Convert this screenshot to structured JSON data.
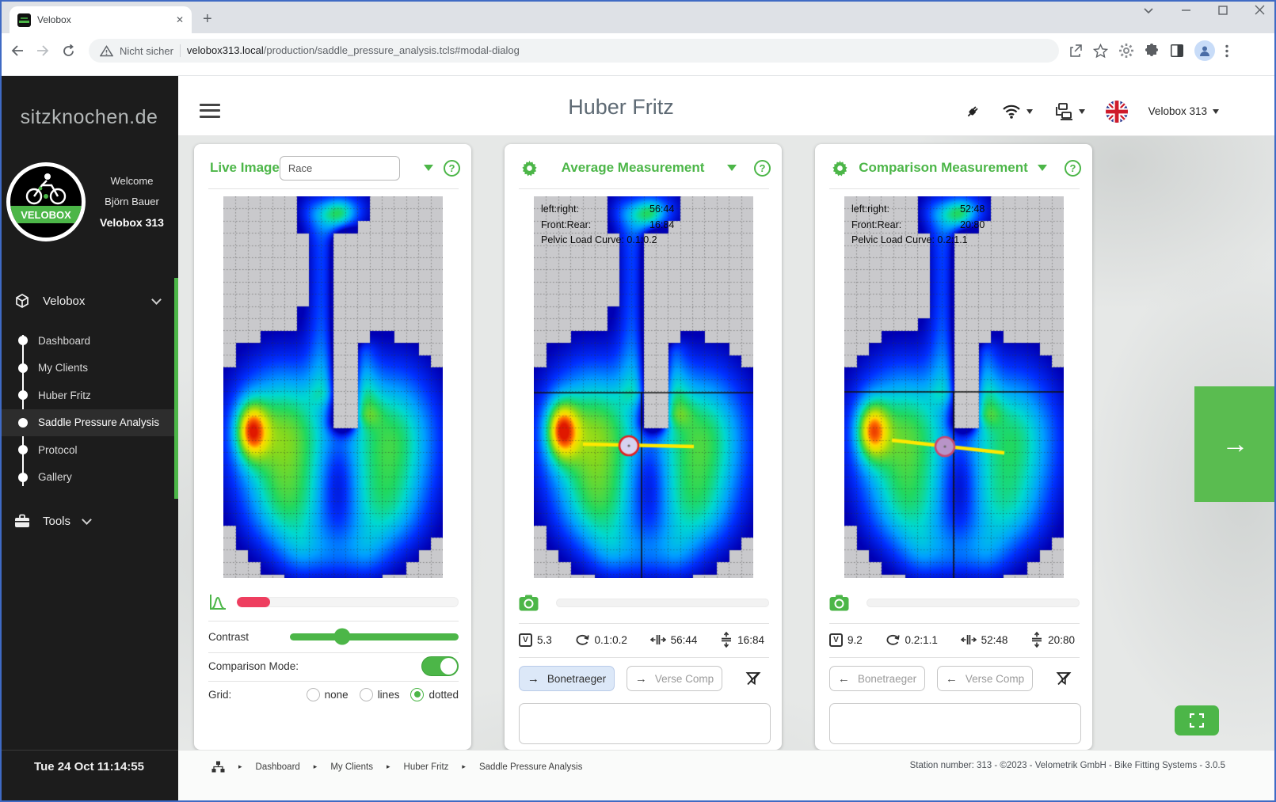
{
  "browser": {
    "tab_title": "Velobox",
    "security_label": "Nicht sicher",
    "url_host": "velobox313.local",
    "url_path": "/production/saddle_pressure_analysis.tcls#modal-dialog"
  },
  "sidebar": {
    "brand": "sitzknochen.de",
    "logo_text": "VELOBOX",
    "welcome": "Welcome",
    "user": "Björn Bauer",
    "station": "Velobox 313",
    "group_velobox": "Velobox",
    "items": [
      "Dashboard",
      "My Clients",
      "Huber Fritz",
      "Saddle Pressure Analysis",
      "Protocol",
      "Gallery"
    ],
    "active_item": "Saddle Pressure Analysis",
    "group_tools": "Tools",
    "clock": "Tue 24 Oct 11:14:55"
  },
  "header": {
    "title": "Huber Fritz",
    "station_select": "Velobox 313"
  },
  "panels": {
    "live": {
      "title": "Live Image",
      "preset": "Race",
      "contrast_label": "Contrast",
      "comparison_label": "Comparison Mode:",
      "comparison_on": true,
      "grid_label": "Grid:",
      "grid_options": [
        "none",
        "lines",
        "dotted"
      ],
      "grid_selected": "dotted"
    },
    "average": {
      "title": "Average Measurement",
      "overlay": {
        "lr_label": "left:right:",
        "lr": "56:44",
        "fr_label": "Front:Rear:",
        "fr": "16:84",
        "pelvic_label": "Pelvic Load Curve:",
        "pelvic": "0.1:0.2"
      },
      "stats": {
        "v": "5.3",
        "rotation": "0.1:0.2",
        "lr": "56:44",
        "fr": "16:84"
      },
      "buttons": {
        "bonetraeger": "Bonetraeger",
        "verse": "Verse Comp"
      }
    },
    "comparison": {
      "title": "Comparison Measurement",
      "overlay": {
        "lr_label": "left:right:",
        "lr": "52:48",
        "fr_label": "Front:Rear:",
        "fr": "20:80",
        "pelvic_label": "Pelvic Load Curve:",
        "pelvic": "0.2:1.1"
      },
      "stats": {
        "v": "9.2",
        "rotation": "0.2:1.1",
        "lr": "52:48",
        "fr": "20:80"
      },
      "buttons": {
        "bonetraeger": "Bonetraeger",
        "verse": "Verse Comp"
      }
    }
  },
  "footer": {
    "breadcrumbs": [
      "Dashboard",
      "My Clients",
      "Huber Fritz",
      "Saddle Pressure Analysis"
    ],
    "status": "Station number: 313 - ©2023 - Velometrik GmbH - Bike Fitting Systems - 3.0.5"
  },
  "ui": {
    "help": "?",
    "v": "V",
    "close": "✕",
    "plus": "+",
    "arrow_right": "→",
    "arrow_left": "←",
    "sep": "▸",
    "side_arrow": "→"
  },
  "colors": {
    "accent": "#4cb648",
    "danger": "#ee3e5f",
    "active_button_bg": "#dce8f8",
    "sidebar_bg": "#1c1c1c"
  }
}
